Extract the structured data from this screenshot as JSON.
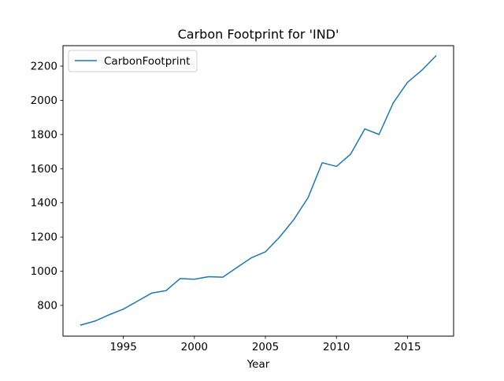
{
  "chart_data": {
    "type": "line",
    "title": "Carbon Footprint for 'IND'",
    "xlabel": "Year",
    "ylabel": "",
    "xlim": [
      1990.75,
      2018.25
    ],
    "ylim": [
      620,
      2320
    ],
    "xticks": [
      1995,
      2000,
      2005,
      2010,
      2015
    ],
    "yticks": [
      800,
      1000,
      1200,
      1400,
      1600,
      1800,
      2000,
      2200
    ],
    "grid": false,
    "legend": {
      "position": "top-left"
    },
    "series": [
      {
        "name": "CarbonFootprint",
        "color": "#1f77b4",
        "x": [
          1992,
          1993,
          1994,
          1995,
          1996,
          1997,
          1998,
          1999,
          2000,
          2001,
          2002,
          2003,
          2004,
          2005,
          2006,
          2007,
          2008,
          2009,
          2010,
          2011,
          2012,
          2013,
          2014,
          2015,
          2016,
          2017
        ],
        "y": [
          685,
          708,
          745,
          778,
          825,
          872,
          886,
          957,
          953,
          968,
          965,
          1022,
          1078,
          1113,
          1200,
          1302,
          1430,
          1635,
          1613,
          1685,
          1833,
          1800,
          1985,
          2105,
          2175,
          2260
        ]
      }
    ]
  }
}
